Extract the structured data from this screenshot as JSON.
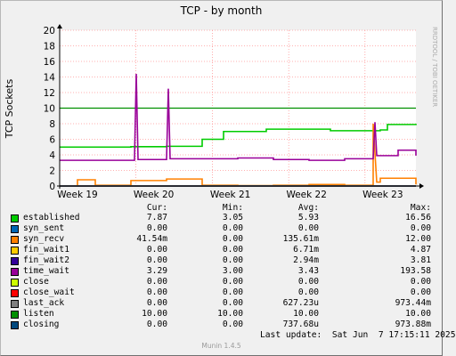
{
  "chart_data": {
    "type": "line",
    "title": "TCP - by month",
    "ylabel": "TCP Sockets",
    "ylim": [
      0,
      20
    ],
    "yticks": [
      0,
      2,
      4,
      6,
      8,
      10,
      12,
      14,
      16,
      18,
      20
    ],
    "xlim": [
      0,
      1
    ],
    "xticks": [
      {
        "label": "Week 19",
        "pos": 0.0
      },
      {
        "label": "Week 20",
        "pos": 0.214
      },
      {
        "label": "Week 21",
        "pos": 0.429
      },
      {
        "label": "Week 22",
        "pos": 0.643
      },
      {
        "label": "Week 23",
        "pos": 0.857
      }
    ],
    "grid": true,
    "watermark": "RRDTOOL / TOBI OETIKER",
    "series": [
      {
        "name": "established",
        "color": "#00cc00",
        "x": [
          0,
          0.1,
          0.2,
          0.3,
          0.39,
          0.4,
          0.44,
          0.46,
          0.56,
          0.58,
          0.75,
          0.76,
          0.9,
          0.92,
          1.0
        ],
        "y": [
          5.0,
          5.0,
          5.05,
          5.1,
          5.1,
          6.0,
          6.0,
          7.0,
          7.0,
          7.3,
          7.3,
          7.1,
          7.2,
          7.9,
          8.0
        ]
      },
      {
        "name": "syn_sent",
        "color": "#0066b3",
        "x": [
          0,
          1
        ],
        "y": [
          0,
          0
        ]
      },
      {
        "name": "syn_recv",
        "color": "#ff8000",
        "x": [
          0,
          0.05,
          0.1,
          0.2,
          0.3,
          0.4,
          0.5,
          0.6,
          0.7,
          0.8,
          0.88,
          0.89,
          0.9,
          1.0
        ],
        "y": [
          0,
          0.8,
          0.1,
          0.7,
          0.9,
          0.1,
          0.05,
          0.1,
          0.2,
          0.1,
          8.0,
          0.5,
          1.0,
          0.2
        ]
      },
      {
        "name": "fin_wait1",
        "color": "#ffcc00",
        "x": [
          0,
          1
        ],
        "y": [
          0,
          0
        ]
      },
      {
        "name": "fin_wait2",
        "color": "#330099",
        "x": [
          0,
          1
        ],
        "y": [
          0,
          0
        ]
      },
      {
        "name": "time_wait",
        "color": "#990099",
        "x": [
          0,
          0.1,
          0.21,
          0.215,
          0.22,
          0.3,
          0.305,
          0.31,
          0.5,
          0.6,
          0.7,
          0.8,
          0.88,
          0.885,
          0.89,
          0.95,
          1.0
        ],
        "y": [
          3.3,
          3.3,
          3.4,
          14.4,
          3.4,
          3.4,
          12.5,
          3.5,
          3.6,
          3.4,
          3.3,
          3.5,
          3.5,
          8.2,
          3.9,
          4.6,
          3.9
        ]
      },
      {
        "name": "close",
        "color": "#ccff00",
        "x": [
          0,
          1
        ],
        "y": [
          0,
          0
        ]
      },
      {
        "name": "close_wait",
        "color": "#ff0000",
        "x": [
          0,
          1
        ],
        "y": [
          0,
          0
        ]
      },
      {
        "name": "last_ack",
        "color": "#808080",
        "x": [
          0,
          1
        ],
        "y": [
          0,
          0
        ]
      },
      {
        "name": "listen",
        "color": "#008f00",
        "x": [
          0,
          1
        ],
        "y": [
          10,
          10
        ]
      },
      {
        "name": "closing",
        "color": "#00487d",
        "x": [
          0,
          1
        ],
        "y": [
          0,
          0
        ]
      }
    ]
  },
  "legend": {
    "headers": {
      "cur": "Cur:",
      "min": "Min:",
      "avg": "Avg:",
      "max": "Max:"
    },
    "rows": [
      {
        "name": "established",
        "color": "#00cc00",
        "cur": "7.87",
        "min": "3.05",
        "avg": "5.93",
        "max": "16.56"
      },
      {
        "name": "syn_sent",
        "color": "#0066b3",
        "cur": "0.00",
        "min": "0.00",
        "avg": "0.00",
        "max": "0.00"
      },
      {
        "name": "syn_recv",
        "color": "#ff8000",
        "cur": "41.54m",
        "min": "0.00",
        "avg": "135.61m",
        "max": "12.00"
      },
      {
        "name": "fin_wait1",
        "color": "#ffcc00",
        "cur": "0.00",
        "min": "0.00",
        "avg": "6.71m",
        "max": "4.87"
      },
      {
        "name": "fin_wait2",
        "color": "#330099",
        "cur": "0.00",
        "min": "0.00",
        "avg": "2.94m",
        "max": "3.81"
      },
      {
        "name": "time_wait",
        "color": "#990099",
        "cur": "3.29",
        "min": "3.00",
        "avg": "3.43",
        "max": "193.58"
      },
      {
        "name": "close",
        "color": "#ccff00",
        "cur": "0.00",
        "min": "0.00",
        "avg": "0.00",
        "max": "0.00"
      },
      {
        "name": "close_wait",
        "color": "#ff0000",
        "cur": "0.00",
        "min": "0.00",
        "avg": "0.00",
        "max": "0.00"
      },
      {
        "name": "last_ack",
        "color": "#808080",
        "cur": "0.00",
        "min": "0.00",
        "avg": "627.23u",
        "max": "973.44m"
      },
      {
        "name": "listen",
        "color": "#008f00",
        "cur": "10.00",
        "min": "10.00",
        "avg": "10.00",
        "max": "10.00"
      },
      {
        "name": "closing",
        "color": "#00487d",
        "cur": "0.00",
        "min": "0.00",
        "avg": "737.68u",
        "max": "973.88m"
      }
    ],
    "last_update": "Last update:  Sat Jun  7 17:15:11 2025"
  },
  "footer": "Munin 1.4.5"
}
